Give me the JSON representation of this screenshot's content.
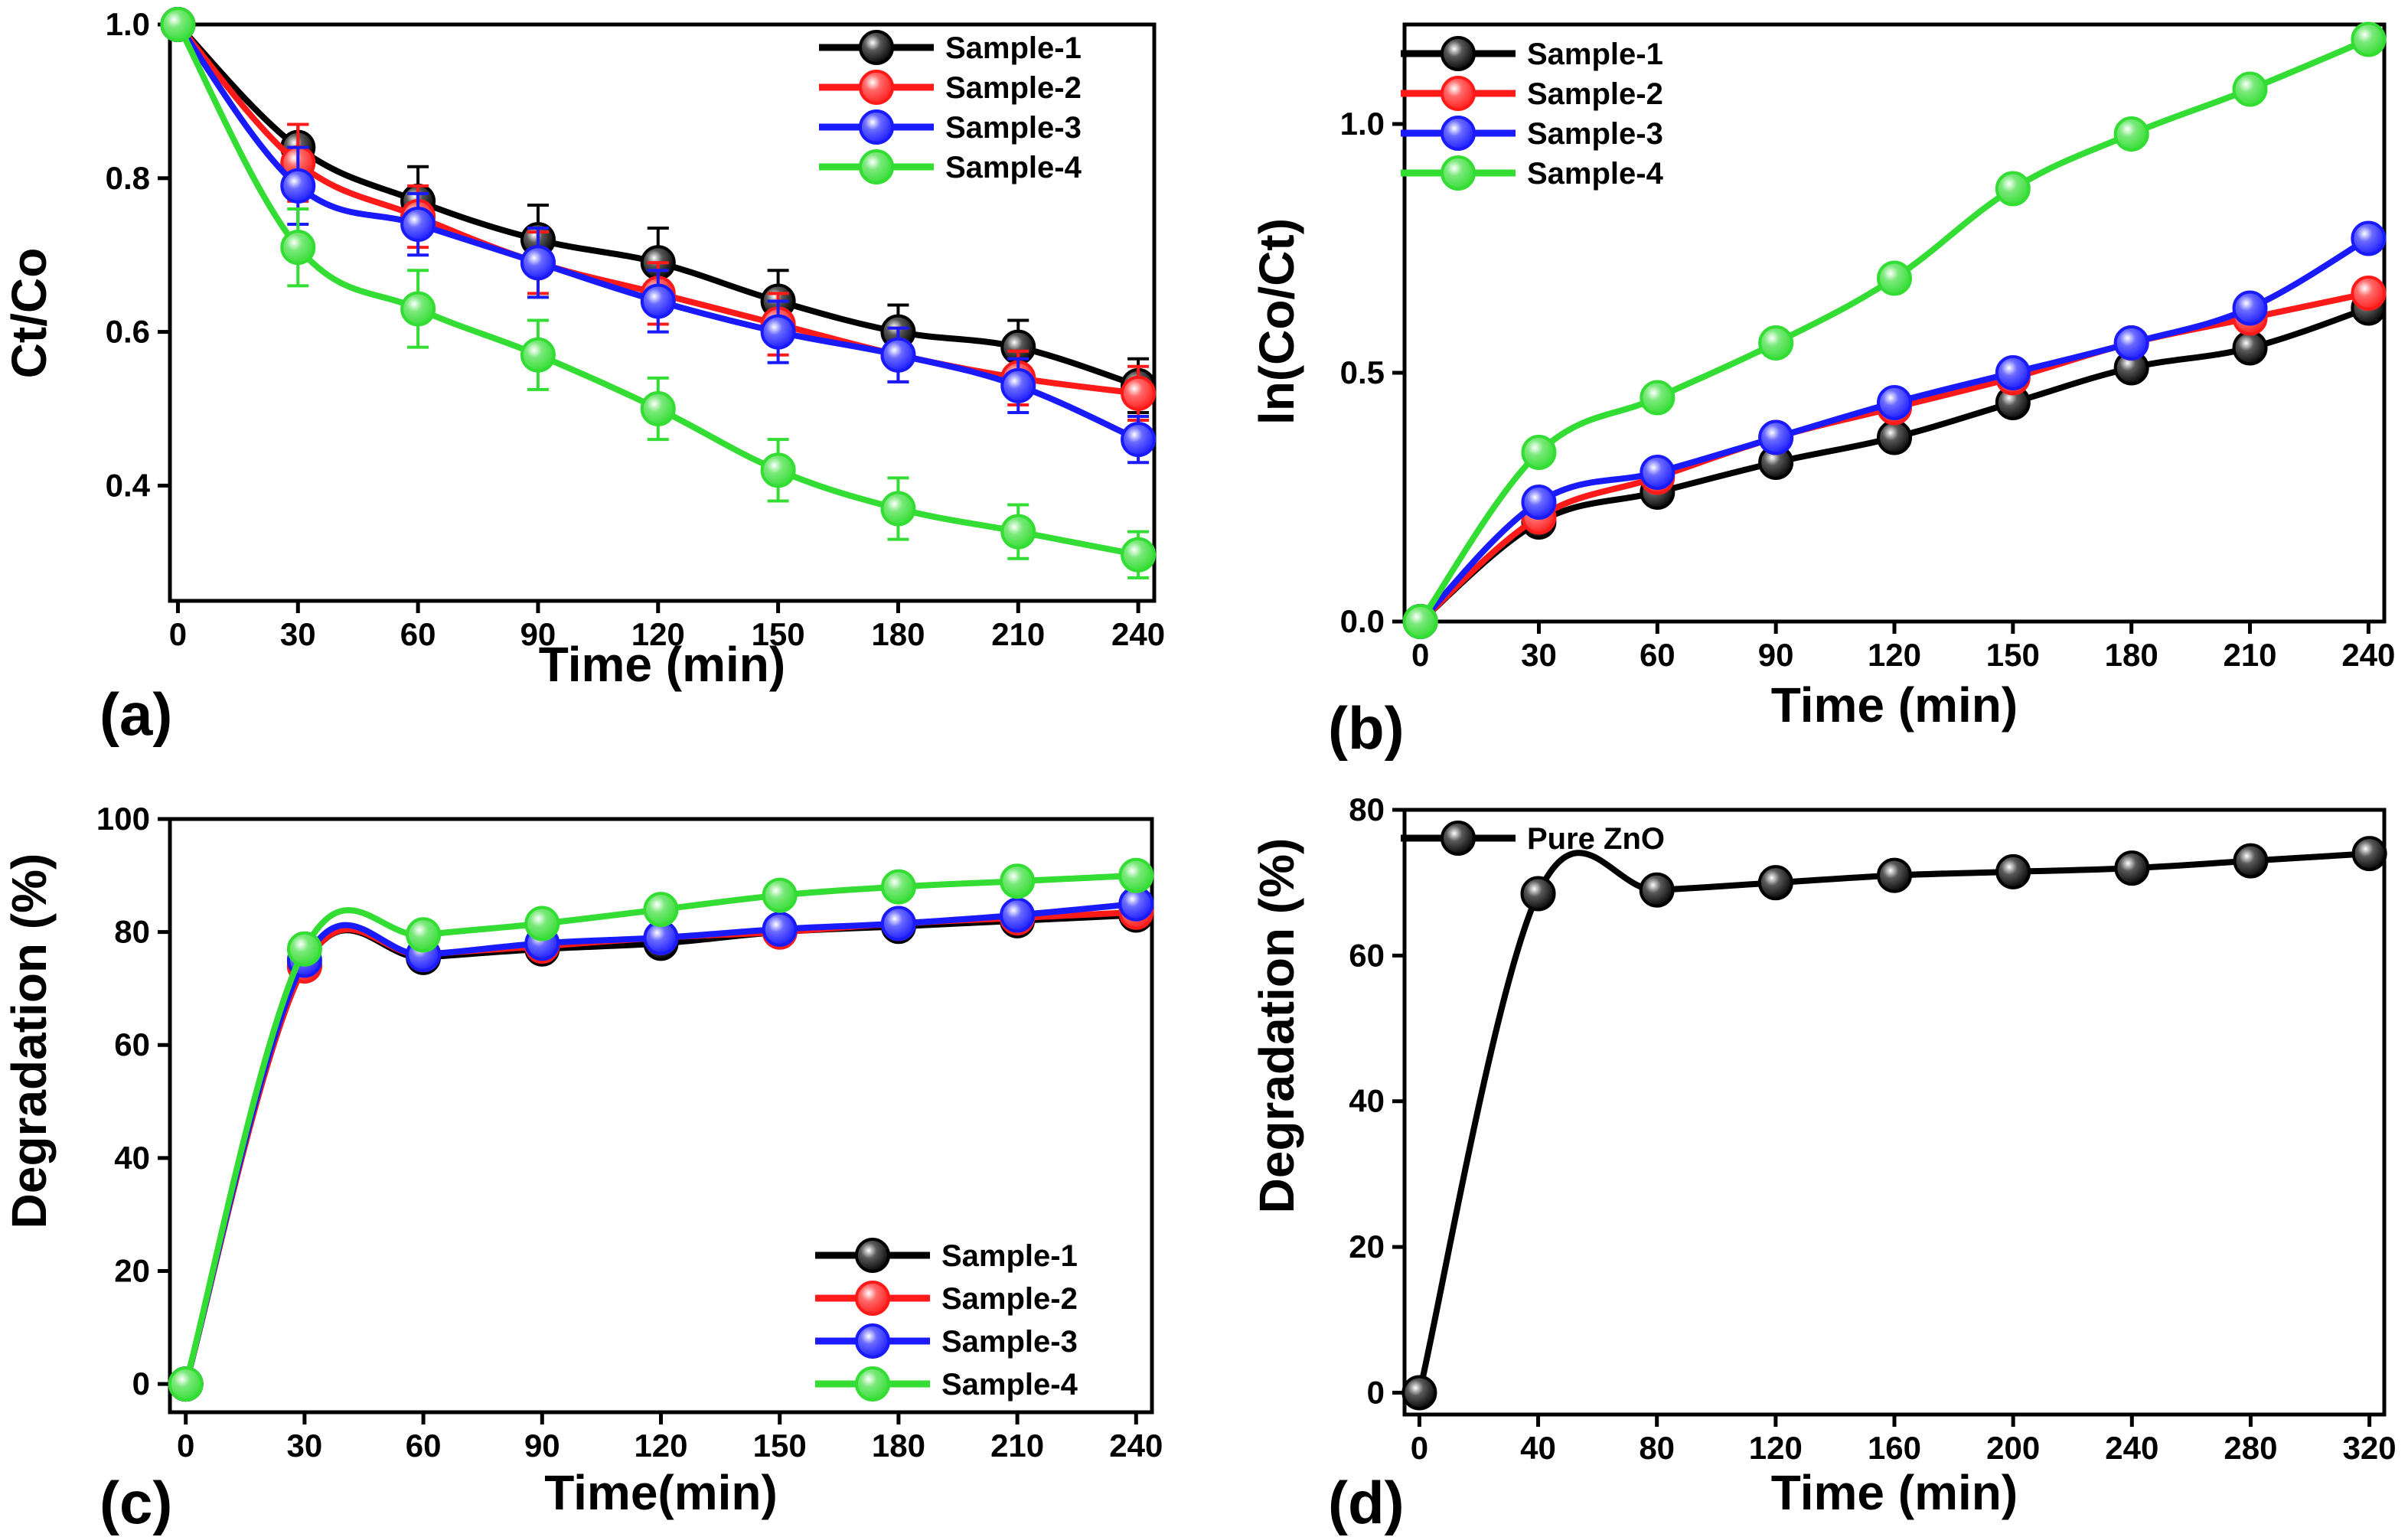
{
  "chart_data": [
    {
      "type": "line",
      "panel_label": "(a)",
      "xlabel": "Time (min)",
      "ylabel": "Ct/Co",
      "xlim": [
        -2,
        244
      ],
      "ylim": [
        0.25,
        1.0
      ],
      "xticks": [
        0,
        30,
        60,
        90,
        120,
        150,
        180,
        210,
        240
      ],
      "yticks": [
        0.4,
        0.6,
        0.8,
        1.0
      ],
      "ytick_labels": [
        "0.4",
        "0.6",
        "0.8",
        "1.0"
      ],
      "legend_position": "top-right",
      "error_bars": true,
      "x": [
        0,
        30,
        60,
        90,
        120,
        150,
        180,
        210,
        240
      ],
      "series": [
        {
          "name": "Sample-1",
          "color": "#000000",
          "values": [
            1.0,
            0.84,
            0.77,
            0.72,
            0.69,
            0.64,
            0.6,
            0.58,
            0.53
          ],
          "errors": [
            0.0,
            0.03,
            0.045,
            0.045,
            0.045,
            0.04,
            0.035,
            0.035,
            0.035
          ]
        },
        {
          "name": "Sample-2",
          "color": "#ff1a1a",
          "values": [
            1.0,
            0.82,
            0.75,
            0.69,
            0.65,
            0.61,
            0.57,
            0.54,
            0.52
          ],
          "errors": [
            0.0,
            0.05,
            0.04,
            0.04,
            0.04,
            0.04,
            0.035,
            0.035,
            0.035
          ]
        },
        {
          "name": "Sample-3",
          "color": "#1a1aff",
          "values": [
            1.0,
            0.79,
            0.74,
            0.69,
            0.64,
            0.6,
            0.57,
            0.53,
            0.46
          ],
          "errors": [
            0.0,
            0.05,
            0.04,
            0.045,
            0.04,
            0.04,
            0.035,
            0.035,
            0.03
          ]
        },
        {
          "name": "Sample-4",
          "color": "#33dd33",
          "values": [
            1.0,
            0.71,
            0.63,
            0.57,
            0.5,
            0.42,
            0.37,
            0.34,
            0.31
          ],
          "errors": [
            0.0,
            0.05,
            0.05,
            0.045,
            0.04,
            0.04,
            0.04,
            0.035,
            0.03
          ]
        }
      ]
    },
    {
      "type": "line",
      "panel_label": "(b)",
      "xlabel": "Time (min)",
      "ylabel": "ln(Co/Ct)",
      "xlim": [
        -4,
        244
      ],
      "ylim": [
        0.0,
        1.2
      ],
      "xticks": [
        0,
        30,
        60,
        90,
        120,
        150,
        180,
        210,
        240
      ],
      "yticks": [
        0.0,
        0.5,
        1.0
      ],
      "ytick_labels": [
        "0.0",
        "0.5",
        "1.0"
      ],
      "legend_position": "top-left",
      "x": [
        0,
        30,
        60,
        90,
        120,
        150,
        180,
        210,
        240
      ],
      "series": [
        {
          "name": "Sample-1",
          "color": "#000000",
          "values": [
            0.0,
            0.2,
            0.26,
            0.32,
            0.37,
            0.44,
            0.51,
            0.55,
            0.63
          ]
        },
        {
          "name": "Sample-2",
          "color": "#ff1a1a",
          "values": [
            0.0,
            0.21,
            0.29,
            0.37,
            0.43,
            0.49,
            0.56,
            0.61,
            0.66
          ]
        },
        {
          "name": "Sample-3",
          "color": "#1a1aff",
          "values": [
            0.0,
            0.24,
            0.3,
            0.37,
            0.44,
            0.5,
            0.56,
            0.63,
            0.77
          ]
        },
        {
          "name": "Sample-4",
          "color": "#33dd33",
          "values": [
            0.0,
            0.34,
            0.45,
            0.56,
            0.69,
            0.87,
            0.98,
            1.07,
            1.17
          ]
        }
      ]
    },
    {
      "type": "line",
      "panel_label": "(c)",
      "xlabel": "Time(min)",
      "ylabel": "Degradation (%)",
      "xlim": [
        -4,
        244
      ],
      "ylim": [
        -5,
        100
      ],
      "xticks": [
        0,
        30,
        60,
        90,
        120,
        150,
        180,
        210,
        240
      ],
      "yticks": [
        0,
        20,
        40,
        60,
        80,
        100
      ],
      "ytick_labels": [
        "0",
        "20",
        "40",
        "60",
        "80",
        "100"
      ],
      "legend_position": "bottom-right",
      "x": [
        0,
        30,
        60,
        90,
        120,
        150,
        180,
        210,
        240
      ],
      "series": [
        {
          "name": "Sample-1",
          "color": "#000000",
          "values": [
            0,
            74,
            75.5,
            77,
            78,
            80,
            81,
            82,
            83
          ]
        },
        {
          "name": "Sample-2",
          "color": "#ff1a1a",
          "values": [
            0,
            74,
            76,
            77.5,
            79,
            80,
            81.5,
            82.5,
            83.5
          ]
        },
        {
          "name": "Sample-3",
          "color": "#1a1aff",
          "values": [
            0,
            75,
            76,
            78,
            79,
            80.5,
            81.5,
            83,
            85
          ]
        },
        {
          "name": "Sample-4",
          "color": "#33dd33",
          "values": [
            0,
            77,
            79.5,
            81.5,
            84,
            86.5,
            88,
            89,
            90
          ]
        }
      ]
    },
    {
      "type": "line",
      "panel_label": "(d)",
      "xlabel": "Time (min)",
      "ylabel": "Degradation (%)",
      "xlim": [
        -5,
        325
      ],
      "ylim": [
        -3,
        80
      ],
      "xticks": [
        0,
        40,
        80,
        120,
        160,
        200,
        240,
        280,
        320
      ],
      "yticks": [
        0,
        20,
        40,
        60,
        80
      ],
      "ytick_labels": [
        "0",
        "20",
        "40",
        "60",
        "80"
      ],
      "legend_position": "top-left",
      "x": [
        0,
        40,
        80,
        120,
        160,
        200,
        240,
        280,
        320
      ],
      "series": [
        {
          "name": "Pure ZnO",
          "color": "#000000",
          "values": [
            0,
            68.5,
            69,
            70,
            71,
            71.5,
            72,
            73,
            74
          ]
        }
      ]
    }
  ]
}
